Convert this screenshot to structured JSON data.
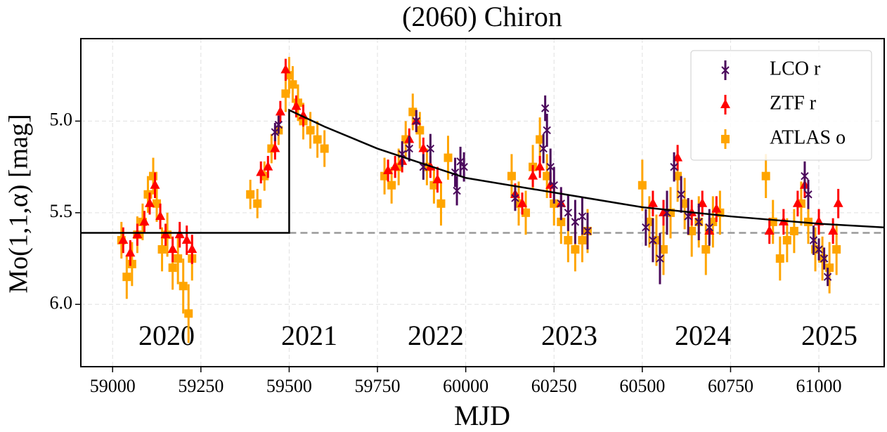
{
  "chart_data": {
    "type": "scatter",
    "title": "(2060) Chiron",
    "x_label": "MJD",
    "y_label": "Mo(1,1,α) [mag]",
    "xlim": [
      58910,
      61185
    ],
    "ylim": [
      6.34,
      4.55
    ],
    "xticks": [
      59000,
      59250,
      59500,
      59750,
      60000,
      60250,
      60500,
      60750,
      61000
    ],
    "yticks": [
      {
        "value": 5,
        "label": "5.0"
      },
      5.5,
      {
        "value": 6,
        "label": "6.0"
      }
    ],
    "grid": true,
    "legend": "upper right",
    "annotations": [
      "2020",
      "2021",
      "2022",
      "2023",
      "2024",
      "2025"
    ],
    "series": [
      {
        "name": "LCO r",
        "color": "#4b0a5c",
        "marker": "x",
        "x": [
          59460,
          59470,
          59820,
          59840,
          59860,
          59880,
          59900,
          59970,
          59975,
          59985,
          59995,
          60140,
          60220,
          60225,
          60230,
          60240,
          60250,
          60270,
          60290,
          60310,
          60330,
          60345,
          60510,
          60530,
          60550,
          60570,
          60590,
          60610,
          60630,
          60660,
          60690,
          60960,
          60970,
          60985,
          61000,
          61015,
          61025
        ],
        "values": [
          5.06,
          5.02,
          5.18,
          5.15,
          5.0,
          5.25,
          5.15,
          5.28,
          5.38,
          5.22,
          5.25,
          5.42,
          5.15,
          4.93,
          5.05,
          5.25,
          5.35,
          5.45,
          5.5,
          5.55,
          5.52,
          5.6,
          5.58,
          5.65,
          5.75,
          5.5,
          5.25,
          5.4,
          5.52,
          5.55,
          5.58,
          5.3,
          5.4,
          5.65,
          5.7,
          5.75,
          5.85
        ],
        "errors": [
          0.05,
          0.05,
          0.07,
          0.07,
          0.06,
          0.07,
          0.08,
          0.08,
          0.08,
          0.08,
          0.08,
          0.07,
          0.08,
          0.07,
          0.09,
          0.1,
          0.1,
          0.09,
          0.1,
          0.12,
          0.1,
          0.1,
          0.1,
          0.12,
          0.14,
          0.12,
          0.08,
          0.1,
          0.1,
          0.1,
          0.1,
          0.08,
          0.08,
          0.08,
          0.06,
          0.06,
          0.05
        ]
      },
      {
        "name": "ZTF r",
        "color": "#ff0000",
        "marker": "triangle",
        "x": [
          59030,
          59050,
          59070,
          59090,
          59105,
          59120,
          59135,
          59150,
          59170,
          59190,
          59210,
          59225,
          59420,
          59440,
          59460,
          59475,
          59490,
          59520,
          59540,
          59780,
          59800,
          59820,
          59840,
          59860,
          59880,
          59900,
          59920,
          60140,
          60160,
          60190,
          60210,
          60240,
          60270,
          60530,
          60560,
          60600,
          60640,
          60670,
          60690,
          60710,
          60860,
          60900,
          60940,
          60960,
          61000,
          61040,
          61055
        ],
        "values": [
          5.65,
          5.72,
          5.62,
          5.55,
          5.45,
          5.35,
          5.52,
          5.62,
          5.7,
          5.62,
          5.65,
          5.7,
          5.28,
          5.25,
          5.15,
          4.95,
          4.72,
          4.92,
          4.97,
          5.27,
          5.25,
          5.22,
          5.1,
          5.0,
          5.15,
          5.25,
          5.32,
          5.4,
          5.45,
          5.3,
          5.25,
          5.35,
          5.45,
          5.45,
          5.5,
          5.2,
          5.5,
          5.45,
          5.6,
          5.48,
          5.6,
          5.55,
          5.45,
          5.35,
          5.55,
          5.6,
          5.45
        ],
        "errors": [
          0.07,
          0.07,
          0.06,
          0.06,
          0.06,
          0.07,
          0.07,
          0.06,
          0.07,
          0.07,
          0.08,
          0.08,
          0.06,
          0.06,
          0.06,
          0.06,
          0.06,
          0.06,
          0.06,
          0.06,
          0.06,
          0.06,
          0.06,
          0.06,
          0.06,
          0.06,
          0.07,
          0.06,
          0.06,
          0.06,
          0.06,
          0.07,
          0.07,
          0.07,
          0.07,
          0.07,
          0.07,
          0.07,
          0.07,
          0.07,
          0.07,
          0.07,
          0.07,
          0.07,
          0.07,
          0.07,
          0.08
        ]
      },
      {
        "name": "ATLAS o",
        "color": "#ffa500",
        "marker": "square",
        "x": [
          59025,
          59040,
          59055,
          59070,
          59085,
          59100,
          59115,
          59125,
          59140,
          59155,
          59170,
          59185,
          59200,
          59215,
          59225,
          59390,
          59410,
          59430,
          59450,
          59470,
          59490,
          59500,
          59510,
          59525,
          59540,
          59560,
          59580,
          59600,
          59770,
          59790,
          59810,
          59830,
          59850,
          59870,
          59890,
          59910,
          59930,
          59950,
          60130,
          60150,
          60170,
          60190,
          60210,
          60230,
          60250,
          60270,
          60290,
          60310,
          60330,
          60345,
          60500,
          60520,
          60540,
          60560,
          60580,
          60600,
          60620,
          60640,
          60660,
          60680,
          60700,
          60720,
          60850,
          60870,
          60890,
          60910,
          60930,
          60950,
          60970,
          60990,
          61010,
          61030,
          61050
        ],
        "values": [
          5.65,
          5.85,
          5.78,
          5.62,
          5.55,
          5.4,
          5.3,
          5.45,
          5.7,
          5.62,
          5.8,
          5.75,
          5.9,
          6.05,
          5.75,
          5.4,
          5.45,
          5.3,
          5.15,
          5.05,
          4.85,
          4.75,
          4.8,
          4.9,
          5.0,
          5.05,
          5.1,
          5.15,
          5.3,
          5.35,
          5.25,
          5.1,
          4.95,
          5.05,
          5.25,
          5.35,
          5.45,
          5.2,
          5.3,
          5.45,
          5.5,
          5.25,
          5.1,
          5.3,
          5.45,
          5.55,
          5.65,
          5.7,
          5.65,
          5.6,
          5.35,
          5.55,
          5.65,
          5.7,
          5.5,
          5.3,
          5.45,
          5.6,
          5.55,
          5.7,
          5.55,
          5.5,
          5.3,
          5.55,
          5.75,
          5.65,
          5.6,
          5.45,
          5.55,
          5.7,
          5.75,
          5.8,
          5.7
        ],
        "errors": [
          0.1,
          0.12,
          0.12,
          0.1,
          0.1,
          0.1,
          0.1,
          0.1,
          0.12,
          0.12,
          0.12,
          0.14,
          0.15,
          0.16,
          0.12,
          0.08,
          0.08,
          0.08,
          0.08,
          0.08,
          0.1,
          0.1,
          0.1,
          0.1,
          0.1,
          0.1,
          0.1,
          0.1,
          0.1,
          0.1,
          0.1,
          0.1,
          0.1,
          0.1,
          0.1,
          0.1,
          0.12,
          0.12,
          0.12,
          0.12,
          0.12,
          0.12,
          0.12,
          0.12,
          0.12,
          0.12,
          0.12,
          0.12,
          0.12,
          0.12,
          0.14,
          0.14,
          0.14,
          0.14,
          0.14,
          0.14,
          0.14,
          0.14,
          0.14,
          0.14,
          0.14,
          0.12,
          0.12,
          0.12,
          0.12,
          0.12,
          0.12,
          0.12,
          0.12,
          0.12,
          0.12,
          0.14,
          0.14
        ]
      }
    ],
    "model": {
      "color": "#000000",
      "x": [
        58910,
        59500,
        59500,
        59600,
        59750,
        60000,
        60250,
        60500,
        60750,
        61000,
        61185
      ],
      "y": [
        5.61,
        5.61,
        4.94,
        5.03,
        5.15,
        5.31,
        5.39,
        5.47,
        5.52,
        5.56,
        5.58
      ]
    },
    "baseline": {
      "color": "#999999",
      "x": [
        59500,
        61185
      ],
      "y": [
        5.61,
        5.61
      ]
    }
  }
}
